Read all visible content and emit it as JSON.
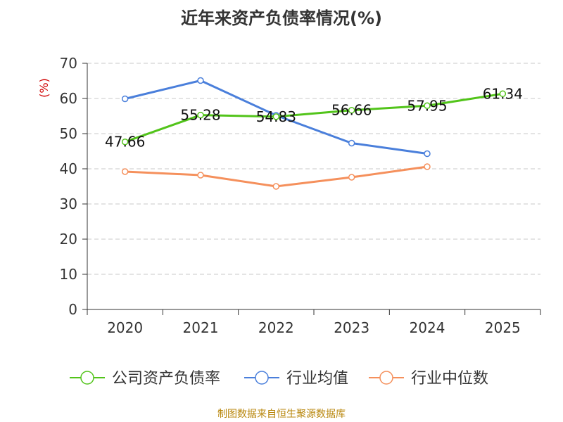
{
  "chart_data": {
    "type": "line",
    "title": "近年来资产负债率情况(%)",
    "ylabel": "(%)",
    "xlabel": "",
    "ylim": [
      0,
      70
    ],
    "yticks": [
      0,
      10,
      20,
      30,
      40,
      50,
      60,
      70
    ],
    "categories": [
      "2020",
      "2021",
      "2022",
      "2023",
      "2024",
      "2025"
    ],
    "grid": true,
    "legend_position": "bottom",
    "series": [
      {
        "name": "公司资产负债率",
        "color": "#52c41a",
        "values": [
          47.66,
          55.28,
          54.83,
          56.66,
          57.95,
          61.34
        ],
        "labels": [
          "47.66",
          "55.28",
          "54.83",
          "56.66",
          "57.95",
          "61.34"
        ]
      },
      {
        "name": "行业均值",
        "color": "#4a7fdb",
        "values": [
          59.9,
          65.1,
          55.2,
          47.3,
          44.3,
          null
        ]
      },
      {
        "name": "行业中位数",
        "color": "#f5905c",
        "values": [
          39.2,
          38.2,
          35.0,
          37.6,
          40.6,
          null
        ]
      }
    ]
  },
  "source": "制图数据来自恒生聚源数据库"
}
